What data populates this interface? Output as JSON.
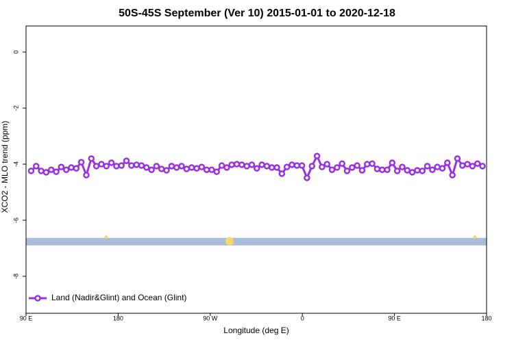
{
  "chart_data": {
    "type": "line",
    "title": "50S-45S September (Ver 10)   2015-01-01 to 2020-12-18",
    "x_label": "Longitude (deg E)",
    "y_label": "XCO2 - MLO trend (ppm)",
    "xlim": [
      90,
      540
    ],
    "xticks": [
      {
        "value": 90,
        "label": "90 E"
      },
      {
        "value": 180,
        "label": "180"
      },
      {
        "value": 270,
        "label": "90 W"
      },
      {
        "value": 360,
        "label": "0"
      },
      {
        "value": 450,
        "label": "90 E"
      },
      {
        "value": 540,
        "label": "180"
      }
    ],
    "ylim": [
      -9.32,
      0.93
    ],
    "yticks": [
      0,
      -2,
      -4,
      -6,
      -8
    ],
    "legend": "bottom-left",
    "band": {
      "ymin": -6.9,
      "ymax": -6.63,
      "color": "#a9bcd9"
    },
    "highlights": {
      "color": "#f5d76e",
      "x": [
        168.3,
        288.9,
        528.6
      ],
      "y": [
        -6.6,
        -6.75,
        -6.6
      ]
    },
    "series": [
      {
        "name": "Land (Nadir&Glint) and Ocean (Glint)",
        "color": "#9a2fe0",
        "x": [
          95,
          99.9,
          104.8,
          109.7,
          114.6,
          119.5,
          124.4,
          129.3,
          134.2,
          139.1,
          144,
          148.9,
          153.8,
          158.7,
          163.6,
          168.5,
          173.4,
          178.3,
          183.2,
          188.1,
          193,
          197.9,
          202.8,
          207.7,
          212.6,
          217.5,
          222.4,
          227.3,
          232.2,
          237.1,
          242,
          246.9,
          251.8,
          256.7,
          261.6,
          266.5,
          271.4,
          276.3,
          281.2,
          286.1,
          291,
          295.9,
          300.8,
          305.7,
          310.6,
          315.5,
          320.4,
          325.3,
          330.2,
          335.1,
          340,
          344.9,
          349.8,
          354.7,
          359.6,
          364.5,
          369.4,
          374.3,
          379.2,
          384.1,
          389,
          393.9,
          398.8,
          403.7,
          408.6,
          413.5,
          418.4,
          423.3,
          428.2,
          433.1,
          438,
          442.9,
          447.8,
          452.7,
          457.6,
          462.5,
          467.4,
          472.3,
          477.2,
          482.1,
          487,
          491.9,
          496.8,
          501.7,
          506.6,
          511.5,
          516.4,
          521.3,
          526.2,
          531.1,
          536
        ],
        "values": [
          -4.24,
          -4.07,
          -4.24,
          -4.29,
          -4.2,
          -4.27,
          -4.1,
          -4.2,
          -4.12,
          -4.15,
          -3.93,
          -4.39,
          -3.8,
          -4.07,
          -4.0,
          -4.07,
          -3.95,
          -4.07,
          -4.05,
          -3.88,
          -4.05,
          -4.02,
          -4.05,
          -4.12,
          -4.2,
          -4.07,
          -4.17,
          -4.22,
          -4.07,
          -4.12,
          -4.07,
          -4.17,
          -4.12,
          -4.15,
          -4.1,
          -4.2,
          -4.2,
          -4.27,
          -4.05,
          -4.12,
          -4.02,
          -4.0,
          -4.02,
          -4.07,
          -4.02,
          -4.15,
          -4.02,
          -4.07,
          -4.12,
          -4.12,
          -4.34,
          -4.1,
          -4.02,
          -4.05,
          -4.05,
          -4.49,
          -4.07,
          -3.71,
          -4.1,
          -4.0,
          -4.2,
          -4.12,
          -3.98,
          -4.24,
          -4.12,
          -4.05,
          -4.22,
          -4.0,
          -3.98,
          -4.17,
          -4.2,
          -4.2,
          -3.95,
          -4.24,
          -4.1,
          -4.22,
          -4.29,
          -4.22,
          -4.24,
          -4.07,
          -4.2,
          -4.1,
          -4.15,
          -3.95,
          -4.39,
          -3.8,
          -4.05,
          -4.0,
          -4.07,
          -3.98,
          -4.07
        ]
      }
    ]
  }
}
